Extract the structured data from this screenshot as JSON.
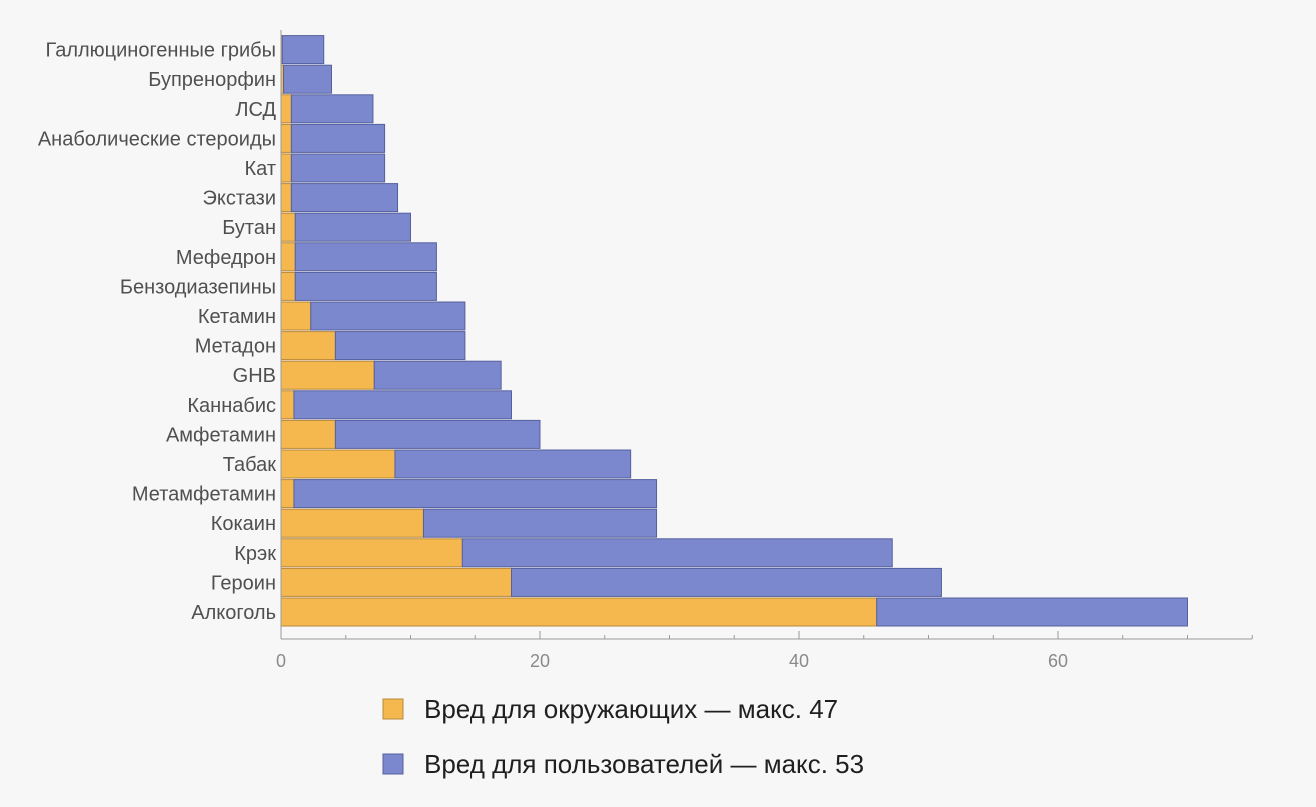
{
  "chart_data": {
    "type": "bar",
    "orientation": "horizontal",
    "stacked": true,
    "categories": [
      "Алкоголь",
      "Героин",
      "Крэк",
      "Кокаин",
      "Метамфетамин",
      "Табак",
      "Амфетамин",
      "Каннабис",
      "GHB",
      "Метадон",
      "Кетамин",
      "Бензодиазепины",
      "Мефедрон",
      "Бутан",
      "Экстази",
      "Кат",
      "Анаболические стероиды",
      "ЛСД",
      "Бупренорфин",
      "Галлюциногенные грибы"
    ],
    "series": [
      {
        "name": "Вред для окружающих — макс. 47",
        "color": "#f4b84f",
        "values": [
          46,
          17.8,
          14,
          11,
          1,
          8.8,
          4.2,
          1,
          7.2,
          4.2,
          2.3,
          1.1,
          1.1,
          1.1,
          0.8,
          0.8,
          0.8,
          0.8,
          0.2,
          0.1
        ]
      },
      {
        "name": "Вред для пользователей — макс. 53",
        "color": "#7c88cd",
        "values": [
          24,
          33.2,
          33.2,
          18,
          28,
          18.2,
          15.8,
          16.8,
          9.8,
          10,
          11.9,
          10.9,
          10.9,
          8.9,
          8.2,
          7.2,
          7.2,
          6.3,
          3.7,
          3.2
        ]
      }
    ],
    "xlim": [
      0,
      75
    ],
    "xticks": [
      0,
      20,
      40,
      60
    ],
    "xlabel": "",
    "ylabel": "",
    "title": "",
    "grid": false,
    "legend_position": "bottom"
  },
  "legend": {
    "others": "Вред для окружающих — макс. 47",
    "users": "Вред для пользователей — макс. 53"
  }
}
